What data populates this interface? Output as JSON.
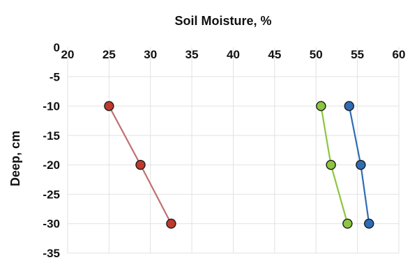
{
  "chart_data": {
    "type": "line",
    "xlabel": "Soil Moisture, %",
    "ylabel": "Deep, cm",
    "xlim": [
      20,
      60
    ],
    "ylim": [
      -35,
      0
    ],
    "x_ticks": [
      20,
      25,
      30,
      35,
      40,
      45,
      50,
      55,
      60
    ],
    "y_ticks": [
      0,
      -5,
      -10,
      -15,
      -20,
      -25,
      -30,
      -35
    ],
    "x_axis_position": "top",
    "grid": true,
    "series": [
      {
        "color": "#c0392b",
        "line_color": "#c07070",
        "points": [
          [
            25,
            -10
          ],
          [
            28.8,
            -20
          ],
          [
            32.5,
            -30
          ]
        ]
      },
      {
        "color": "#8cc63f",
        "line_color": "#8cc63f",
        "points": [
          [
            50.6,
            -10
          ],
          [
            51.8,
            -20
          ],
          [
            53.8,
            -30
          ]
        ]
      },
      {
        "color": "#2e6db5",
        "line_color": "#2e6db5",
        "points": [
          [
            54,
            -10
          ],
          [
            55.4,
            -20
          ],
          [
            56.4,
            -30
          ]
        ]
      }
    ]
  }
}
